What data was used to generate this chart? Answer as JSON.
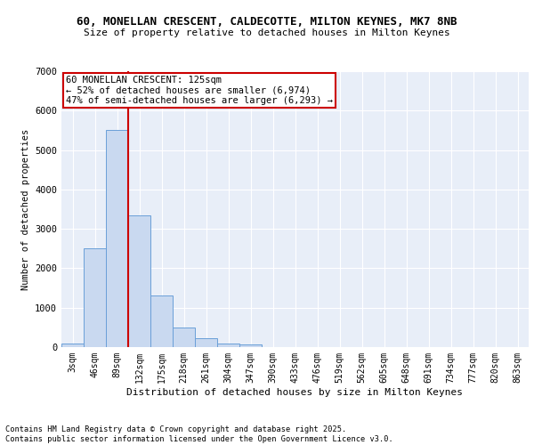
{
  "title_line1": "60, MONELLAN CRESCENT, CALDECOTTE, MILTON KEYNES, MK7 8NB",
  "title_line2": "Size of property relative to detached houses in Milton Keynes",
  "xlabel": "Distribution of detached houses by size in Milton Keynes",
  "ylabel": "Number of detached properties",
  "bar_labels": [
    "3sqm",
    "46sqm",
    "89sqm",
    "132sqm",
    "175sqm",
    "218sqm",
    "261sqm",
    "304sqm",
    "347sqm",
    "390sqm",
    "433sqm",
    "476sqm",
    "519sqm",
    "562sqm",
    "605sqm",
    "648sqm",
    "691sqm",
    "734sqm",
    "777sqm",
    "820sqm",
    "863sqm"
  ],
  "bar_values": [
    100,
    2500,
    5500,
    3350,
    1300,
    490,
    220,
    100,
    60,
    0,
    0,
    0,
    0,
    0,
    0,
    0,
    0,
    0,
    0,
    0,
    0
  ],
  "bar_color": "#c9d9f0",
  "bar_edge_color": "#6a9fd8",
  "ylim": [
    0,
    7000
  ],
  "yticks": [
    0,
    1000,
    2000,
    3000,
    4000,
    5000,
    6000,
    7000
  ],
  "annotation_title": "60 MONELLAN CRESCENT: 125sqm",
  "annotation_line2": "← 52% of detached houses are smaller (6,974)",
  "annotation_line3": "47% of semi-detached houses are larger (6,293) →",
  "vline_color": "#cc0000",
  "annotation_box_color": "#cc0000",
  "background_color": "#e8eef8",
  "footer_line1": "Contains HM Land Registry data © Crown copyright and database right 2025.",
  "footer_line2": "Contains public sector information licensed under the Open Government Licence v3.0."
}
